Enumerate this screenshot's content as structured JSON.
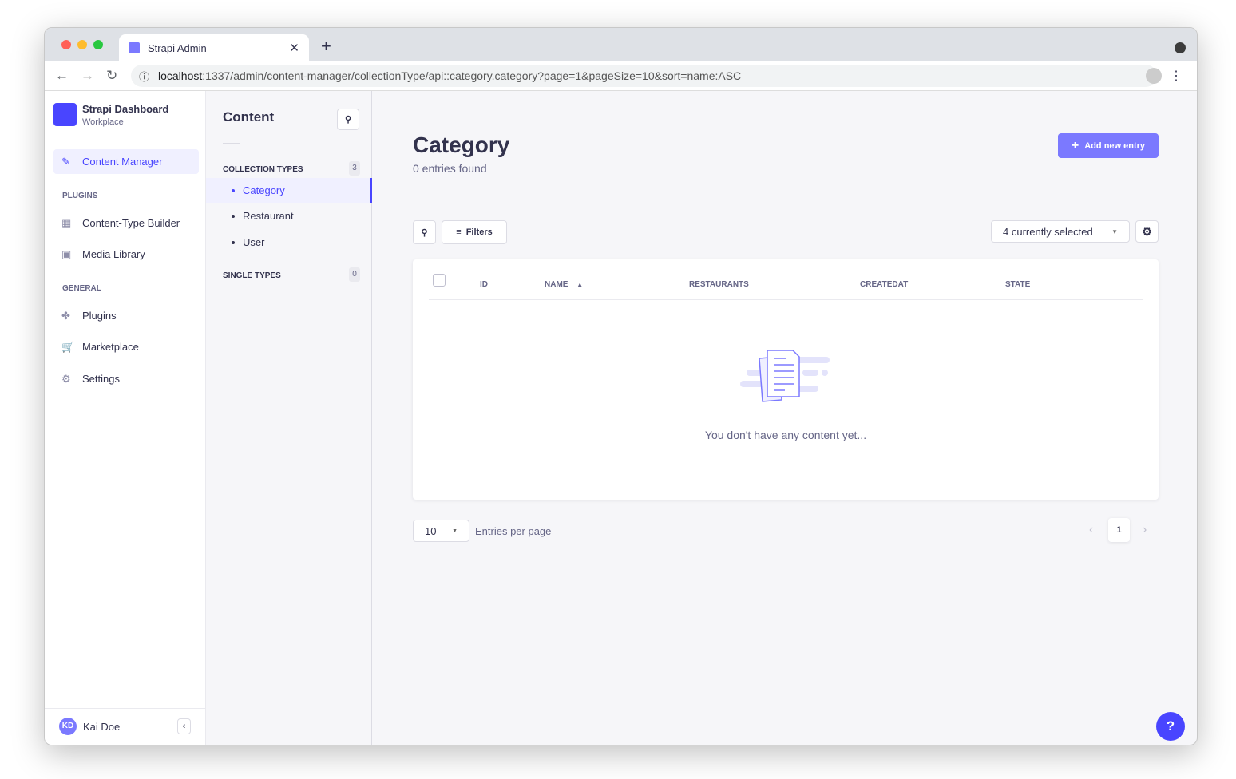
{
  "browser": {
    "tab_title": "Strapi Admin",
    "url_host": "localhost",
    "url_rest": ":1337/admin/content-manager/collectionType/api::category.category?page=1&pageSize=10&sort=name:ASC"
  },
  "sidebar": {
    "brand": "Strapi Dashboard",
    "workspace": "Workplace",
    "active": "Content Manager",
    "plugins_title": "PLUGINS",
    "plugins": [
      "Content-Type Builder",
      "Media Library"
    ],
    "general_title": "GENERAL",
    "general": [
      "Plugins",
      "Marketplace",
      "Settings"
    ],
    "user_initials": "KD",
    "user_name": "Kai Doe"
  },
  "subnav": {
    "title": "Content",
    "collection_title": "COLLECTION TYPES",
    "collection_count": "3",
    "collections": [
      "Category",
      "Restaurant",
      "User"
    ],
    "single_title": "SINGLE TYPES",
    "single_count": "0"
  },
  "main": {
    "title": "Category",
    "subtitle": "0 entries found",
    "add_button": "Add new entry",
    "filters": "Filters",
    "columns_select": "4 currently selected",
    "columns": [
      "ID",
      "NAME",
      "RESTAURANTS",
      "CREATEDAT",
      "STATE"
    ],
    "empty": "You don't have any content yet...",
    "page_size": "10",
    "per_page_label": "Entries per page",
    "page": "1"
  },
  "colors": {
    "accent": "#4945ff",
    "button": "#7b79ff"
  }
}
